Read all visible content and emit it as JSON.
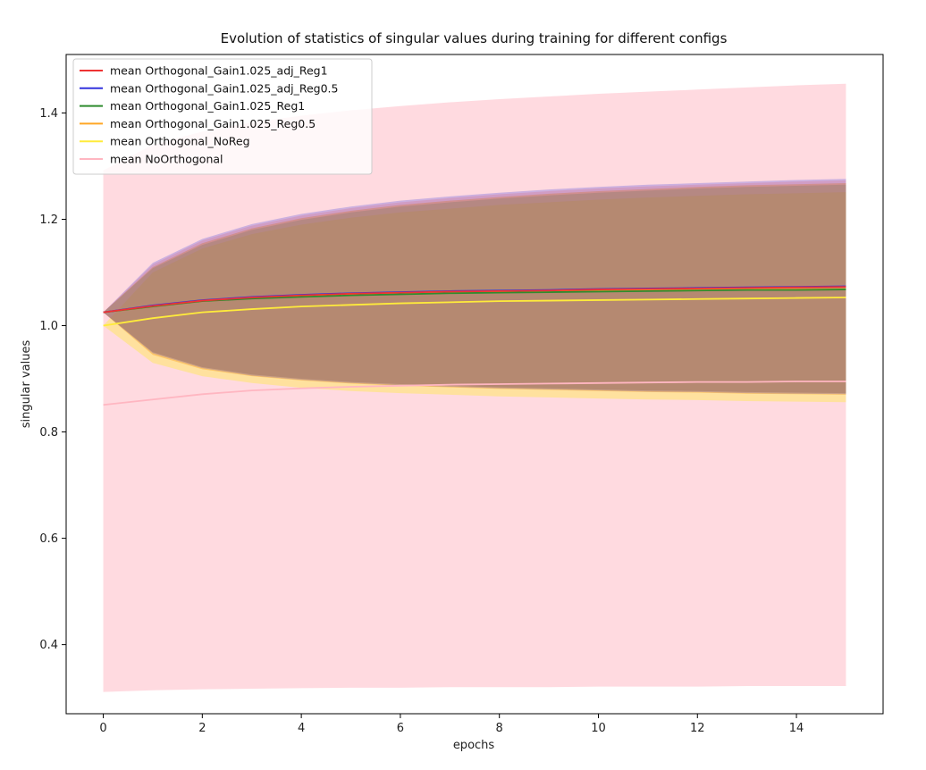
{
  "chart_data": {
    "type": "line",
    "title": "Evolution of statistics of singular values during training for different configs",
    "xlabel": "epochs",
    "ylabel": "singular values",
    "xlim": [
      -0.75,
      15.75
    ],
    "ylim": [
      0.27,
      1.51
    ],
    "xticks": [
      0,
      2,
      4,
      6,
      8,
      10,
      12,
      14
    ],
    "yticks": [
      0.4,
      0.6,
      0.8,
      1.0,
      1.2,
      1.4
    ],
    "grid": false,
    "legend_position": "top-left",
    "x": [
      0,
      1,
      2,
      3,
      4,
      5,
      6,
      7,
      8,
      9,
      10,
      11,
      12,
      13,
      14,
      15
    ],
    "series": [
      {
        "name": "mean NoOrthogonal",
        "color": "#ffb6c1",
        "fill_opacity": 0.5,
        "mean": [
          0.851,
          0.861,
          0.871,
          0.878,
          0.882,
          0.885,
          0.887,
          0.889,
          0.89,
          0.891,
          0.892,
          0.893,
          0.894,
          0.894,
          0.895,
          0.895
        ],
        "lower": [
          0.311,
          0.314,
          0.316,
          0.317,
          0.318,
          0.319,
          0.319,
          0.32,
          0.32,
          0.32,
          0.321,
          0.321,
          0.321,
          0.322,
          0.322,
          0.322
        ],
        "upper": [
          1.292,
          1.34,
          1.365,
          1.382,
          1.395,
          1.405,
          1.413,
          1.42,
          1.426,
          1.431,
          1.436,
          1.44,
          1.444,
          1.448,
          1.452,
          1.455
        ]
      },
      {
        "name": "mean Orthogonal_NoReg",
        "color": "#ffeb3b",
        "fill_opacity": 0.4,
        "mean": [
          1.0,
          1.014,
          1.025,
          1.031,
          1.036,
          1.039,
          1.042,
          1.044,
          1.046,
          1.047,
          1.048,
          1.049,
          1.05,
          1.051,
          1.052,
          1.053
        ],
        "lower": [
          1.0,
          0.93,
          0.905,
          0.892,
          0.883,
          0.877,
          0.873,
          0.87,
          0.867,
          0.865,
          0.863,
          0.861,
          0.86,
          0.858,
          0.857,
          0.856
        ],
        "upper": [
          1.0,
          1.1,
          1.145,
          1.172,
          1.19,
          1.203,
          1.213,
          1.22,
          1.227,
          1.232,
          1.237,
          1.241,
          1.244,
          1.247,
          1.249,
          1.251
        ]
      },
      {
        "name": "mean Orthogonal_Gain1.025_Reg0.5",
        "color": "#ffa726",
        "fill_opacity": 0.45,
        "mean": [
          1.025,
          1.036,
          1.046,
          1.052,
          1.055,
          1.058,
          1.06,
          1.062,
          1.063,
          1.064,
          1.065,
          1.066,
          1.067,
          1.068,
          1.068,
          1.069
        ],
        "lower": [
          1.025,
          0.945,
          0.918,
          0.905,
          0.897,
          0.891,
          0.887,
          0.884,
          0.881,
          0.879,
          0.877,
          0.875,
          0.874,
          0.872,
          0.871,
          0.87
        ],
        "upper": [
          1.025,
          1.11,
          1.155,
          1.183,
          1.202,
          1.216,
          1.227,
          1.235,
          1.242,
          1.248,
          1.253,
          1.257,
          1.261,
          1.264,
          1.266,
          1.268
        ]
      },
      {
        "name": "mean Orthogonal_Gain1.025_Reg1",
        "color": "#2e8b2e",
        "fill_opacity": 0.2,
        "mean": [
          1.025,
          1.036,
          1.046,
          1.051,
          1.054,
          1.057,
          1.059,
          1.061,
          1.062,
          1.063,
          1.064,
          1.065,
          1.066,
          1.067,
          1.067,
          1.068
        ],
        "lower": [
          1.025,
          0.95,
          0.922,
          0.908,
          0.9,
          0.894,
          0.89,
          0.887,
          0.884,
          0.882,
          0.88,
          0.878,
          0.877,
          0.875,
          0.874,
          0.873
        ],
        "upper": [
          1.025,
          1.108,
          1.152,
          1.18,
          1.199,
          1.213,
          1.224,
          1.232,
          1.239,
          1.245,
          1.25,
          1.254,
          1.258,
          1.261,
          1.263,
          1.265
        ]
      },
      {
        "name": "mean Orthogonal_Gain1.025_adj_Reg0.5",
        "color": "#3333dd",
        "fill_opacity": 0.25,
        "mean": [
          1.025,
          1.038,
          1.048,
          1.054,
          1.058,
          1.061,
          1.063,
          1.065,
          1.066,
          1.067,
          1.069,
          1.07,
          1.071,
          1.072,
          1.073,
          1.074
        ],
        "lower": [
          1.025,
          0.948,
          0.92,
          0.906,
          0.898,
          0.892,
          0.888,
          0.885,
          0.882,
          0.88,
          0.878,
          0.876,
          0.875,
          0.873,
          0.872,
          0.871
        ],
        "upper": [
          1.025,
          1.118,
          1.163,
          1.191,
          1.21,
          1.224,
          1.235,
          1.243,
          1.25,
          1.256,
          1.261,
          1.265,
          1.268,
          1.271,
          1.274,
          1.276
        ]
      },
      {
        "name": "mean Orthogonal_Gain1.025_adj_Reg1",
        "color": "#ee3333",
        "fill_opacity": 0.15,
        "mean": [
          1.025,
          1.037,
          1.047,
          1.053,
          1.057,
          1.06,
          1.062,
          1.064,
          1.065,
          1.066,
          1.068,
          1.069,
          1.07,
          1.071,
          1.072,
          1.073
        ],
        "lower": [
          1.025,
          0.95,
          0.922,
          0.908,
          0.9,
          0.894,
          0.89,
          0.887,
          0.884,
          0.882,
          0.88,
          0.878,
          0.877,
          0.875,
          0.874,
          0.873
        ],
        "upper": [
          1.025,
          1.115,
          1.16,
          1.188,
          1.207,
          1.221,
          1.232,
          1.24,
          1.247,
          1.253,
          1.258,
          1.262,
          1.265,
          1.268,
          1.271,
          1.273
        ]
      }
    ],
    "legend_order": [
      "mean Orthogonal_Gain1.025_adj_Reg1",
      "mean Orthogonal_Gain1.025_adj_Reg0.5",
      "mean Orthogonal_Gain1.025_Reg1",
      "mean Orthogonal_Gain1.025_Reg0.5",
      "mean Orthogonal_NoReg",
      "mean NoOrthogonal"
    ]
  }
}
